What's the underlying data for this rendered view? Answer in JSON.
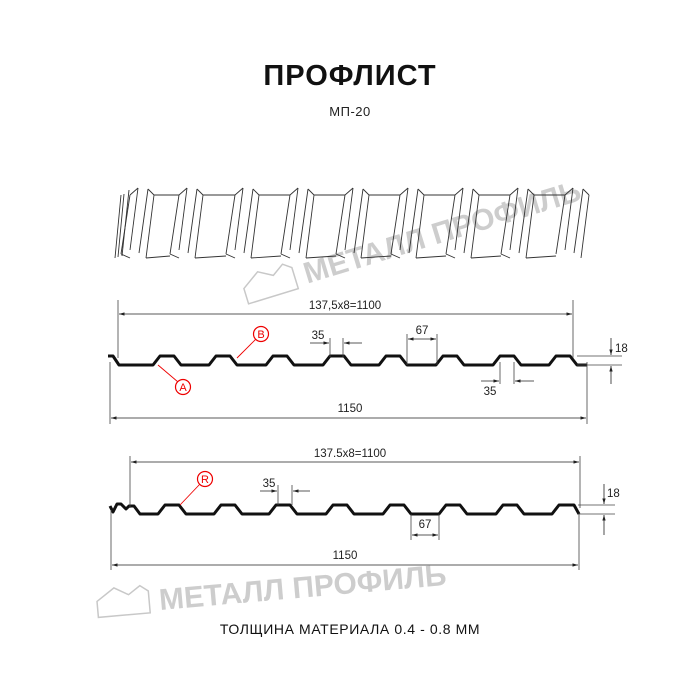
{
  "title": "ПРОФЛИСТ",
  "subtitle": "МП-20",
  "footer": "ТОЛЩИНА МАТЕРИАЛА 0.4 - 0.8 ММ",
  "watermark": "МЕТАЛЛ ПРОФИЛЬ",
  "colors": {
    "profile": "#111111",
    "callout": "#e00000",
    "watermark": "#bdbdbd"
  },
  "profile_a": {
    "pitch_label": "137,5x8=1100",
    "width_label": "1150",
    "crest_label": "35",
    "valley_label": "67",
    "lower_crest_label": "35",
    "height_label": "18",
    "callout_b": "B",
    "callout_a": "A"
  },
  "profile_b": {
    "pitch_label": "137.5x8=1100",
    "width_label": "1150",
    "crest_label": "35",
    "valley_label": "67",
    "height_label": "18",
    "callout_r": "R"
  }
}
